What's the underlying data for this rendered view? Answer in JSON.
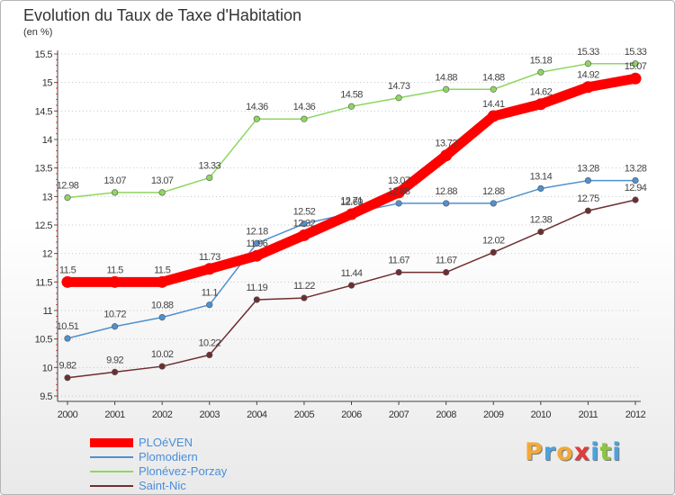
{
  "chart_data": {
    "type": "line",
    "title": "Evolution du Taux de Taxe d'Habitation",
    "subtitle": "(en %)",
    "x": [
      "2000",
      "2001",
      "2002",
      "2003",
      "2004",
      "2005",
      "2006",
      "2007",
      "2008",
      "2009",
      "2010",
      "2011",
      "2012"
    ],
    "ylim": [
      9.5,
      15.5
    ],
    "yticks": [
      "9.5",
      "10",
      "10.5",
      "11",
      "11.5",
      "12",
      "12.5",
      "13",
      "13.5",
      "14",
      "14.5",
      "15",
      "15.5"
    ],
    "grid": "horizontal dotted",
    "legend_position": "bottom-left",
    "series": [
      {
        "name": "PLOéVEN",
        "color": "#ff0000",
        "values": [
          11.5,
          11.5,
          11.5,
          11.73,
          11.96,
          12.32,
          12.69,
          13.07,
          13.72,
          14.41,
          14.62,
          14.92,
          15.07
        ],
        "labels": [
          "11.5",
          "11.5",
          "11.5",
          "11.73",
          "11.96",
          "12.32",
          "12.69",
          "13.07",
          "13.72",
          "14.41",
          "14.62",
          "14.92",
          "15.07"
        ]
      },
      {
        "name": "Plomodiern",
        "color": "#4f90cf",
        "values": [
          10.51,
          10.72,
          10.88,
          11.1,
          12.18,
          12.52,
          12.71,
          12.88,
          12.88,
          12.88,
          13.14,
          13.28,
          13.28
        ],
        "labels": [
          "10.51",
          "10.72",
          "10.88",
          "11.1",
          "12.18",
          "12.52",
          "12.71",
          "12.88",
          "12.88",
          "12.88",
          "13.14",
          "13.28",
          "13.28"
        ]
      },
      {
        "name": "Plonévez-Porzay",
        "color": "#8ed660",
        "values": [
          12.98,
          13.07,
          13.07,
          13.33,
          14.36,
          14.36,
          14.58,
          14.73,
          14.88,
          14.88,
          15.18,
          15.33,
          15.33
        ],
        "labels": [
          "12.98",
          "13.07",
          "13.07",
          "13.33",
          "14.36",
          "14.36",
          "14.58",
          "14.73",
          "14.88",
          "14.88",
          "15.18",
          "15.33",
          "15.33"
        ]
      },
      {
        "name": "Saint-Nic",
        "color": "#6e2e30",
        "values": [
          9.82,
          9.92,
          10.02,
          10.22,
          11.19,
          11.22,
          11.44,
          11.67,
          11.67,
          12.02,
          12.38,
          12.75,
          12.94
        ],
        "labels": [
          "9.82",
          "9.92",
          "10.02",
          "10.22",
          "11.19",
          "11.22",
          "11.44",
          "11.67",
          "11.67",
          "12.02",
          "12.38",
          "12.75",
          "12.94"
        ]
      }
    ]
  },
  "logo": {
    "letters": [
      {
        "char": "P",
        "color": "#f2a93b"
      },
      {
        "char": "r",
        "color": "#4aa3df"
      },
      {
        "char": "o",
        "color": "#f2a93b"
      },
      {
        "char": "x",
        "color": "#e23b3b"
      },
      {
        "char": "i",
        "color": "#4aa3df"
      },
      {
        "char": "t",
        "color": "#8cc63f"
      },
      {
        "char": "i",
        "color": "#4aa3df"
      }
    ]
  }
}
